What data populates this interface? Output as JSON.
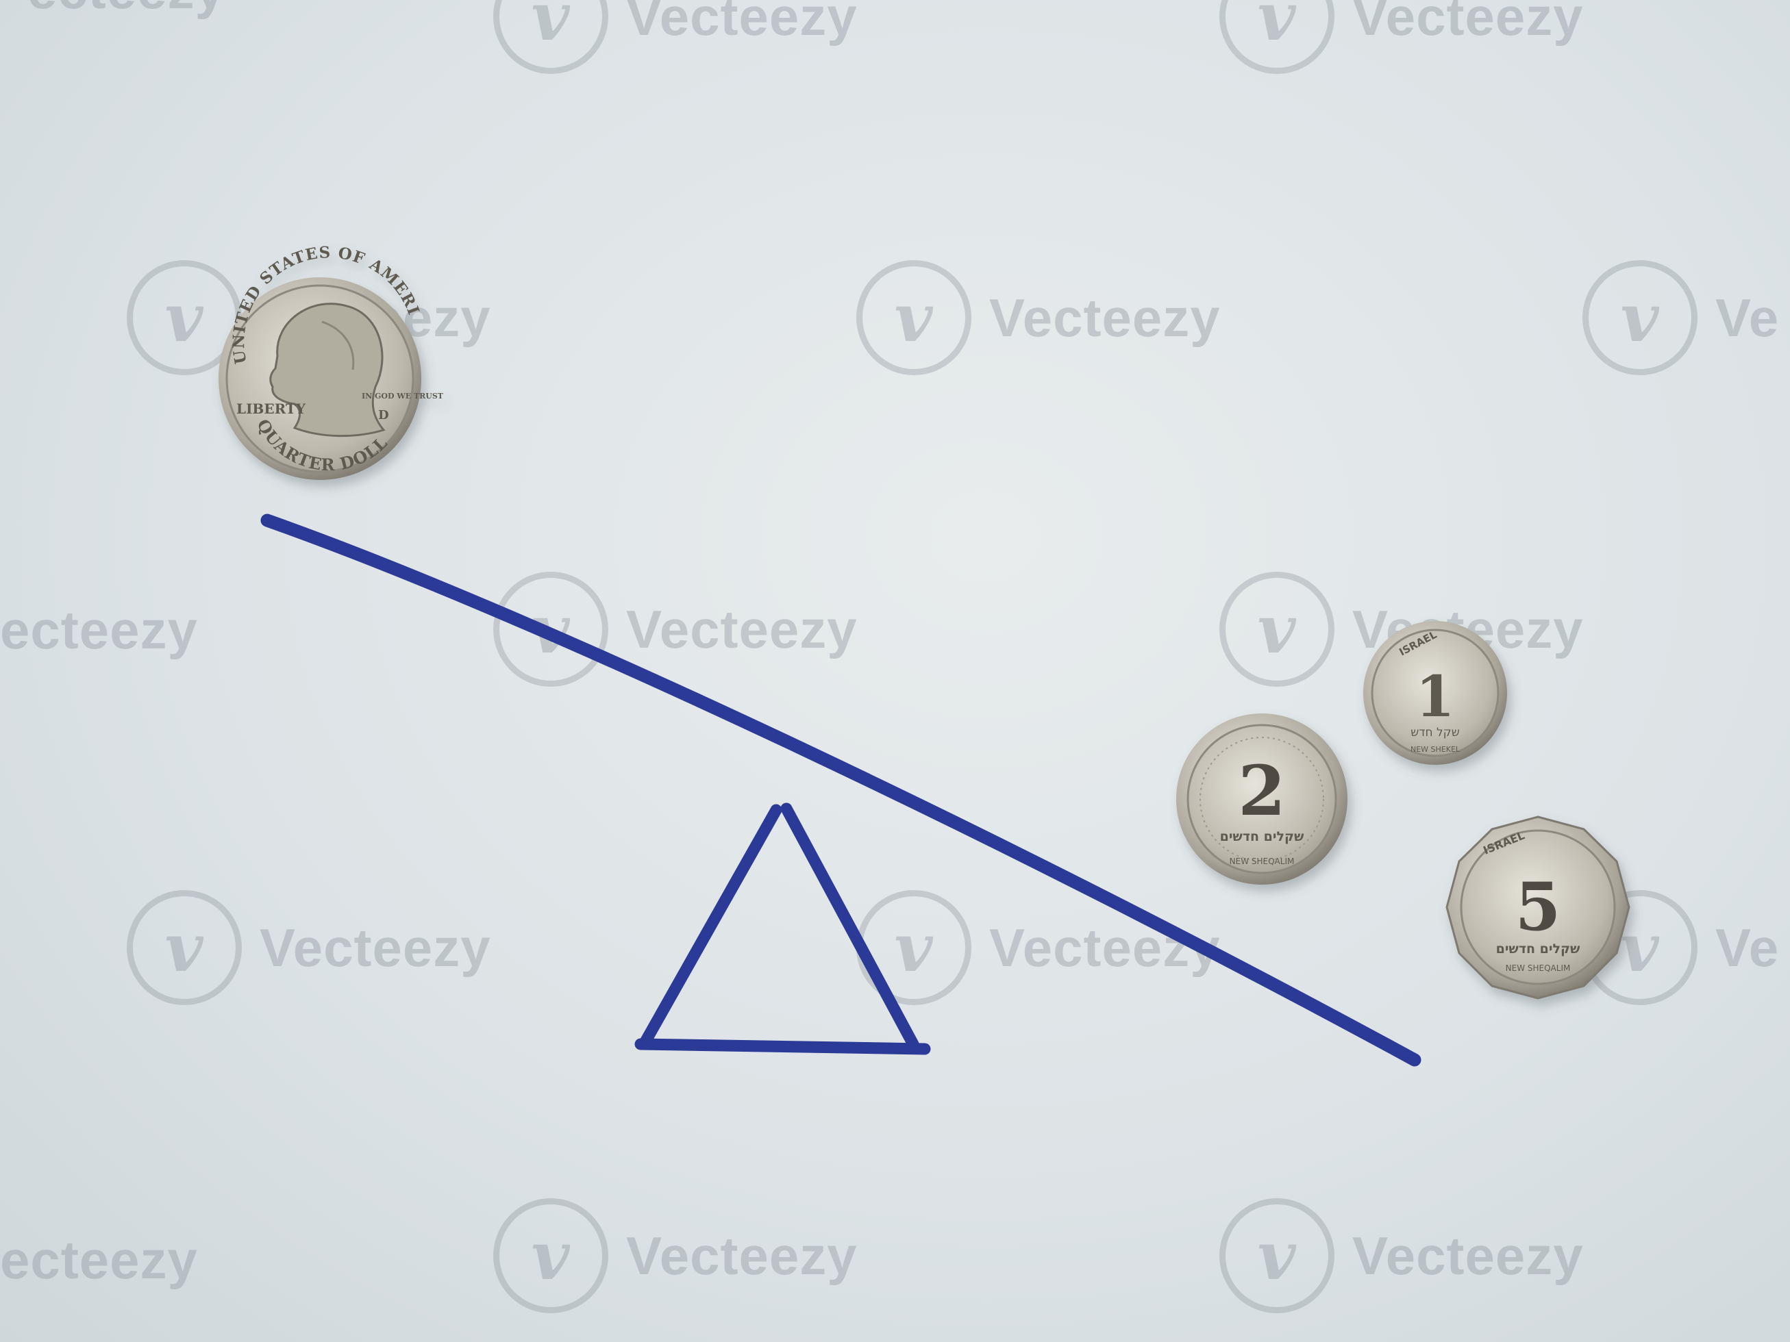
{
  "watermark": {
    "brand": "Vecteezy",
    "partial_left": "ecteezy",
    "partial_right": "Ve",
    "logo_glyph": "v"
  },
  "colors": {
    "paper": "#dfe5e8",
    "ink": "#2b3a97",
    "coin_silver": "#cfcbc0"
  },
  "coins": {
    "quarter": {
      "top_text": "UNITED STATES OF AMERICA",
      "left_text": "LIBERTY",
      "right_text": "IN GOD WE TRUST",
      "bottom_text": "QUARTER DOLLAR",
      "mint_mark": "D"
    },
    "shekel_1": {
      "value": "1",
      "top_text": "ISRAEL",
      "script": "שקל חדש",
      "bottom_text": "NEW SHEKEL"
    },
    "shekel_2": {
      "value": "2",
      "script": "שקלים חדשים",
      "bottom_text": "NEW SHEQALIM"
    },
    "shekel_5": {
      "value": "5",
      "top_text": "ISRAEL",
      "script": "שקלים חדשים",
      "bottom_text": "NEW SHEQALIM"
    }
  }
}
